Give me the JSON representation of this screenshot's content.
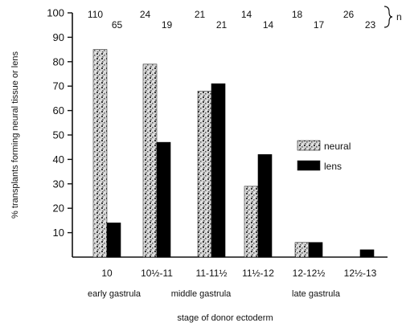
{
  "chart_data": {
    "type": "bar",
    "ylabel": "% transplants forming neural tissue or lens",
    "xlabel": "stage of donor ectoderm",
    "ylim": [
      0,
      100
    ],
    "yticks": [
      "10",
      "20",
      "30",
      "40",
      "50",
      "60",
      "70",
      "80",
      "90",
      "100"
    ],
    "categories": [
      "10",
      "10½-11",
      "11-11½",
      "11½-12",
      "12-12½",
      "12½-13"
    ],
    "stage_groups": [
      "early gastrula",
      "middle gastrula",
      "late gastrula"
    ],
    "series": [
      {
        "name": "neural",
        "values": [
          85,
          79,
          68,
          29,
          6,
          0
        ],
        "n": [
          "110",
          "24",
          "21",
          "14",
          "18",
          "26"
        ],
        "color": "#cfcfcf",
        "pattern": "speckled"
      },
      {
        "name": "lens",
        "values": [
          14,
          47,
          71,
          42,
          6,
          3
        ],
        "n": [
          "65",
          "19",
          "21",
          "14",
          "17",
          "23"
        ],
        "color": "#000000",
        "pattern": "solid"
      }
    ],
    "n_label": "n",
    "legend_position": "right-middle",
    "grid": false
  }
}
